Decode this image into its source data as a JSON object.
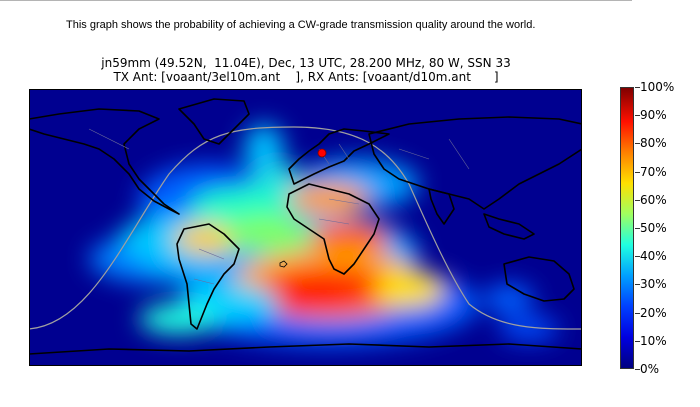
{
  "caption": "This graph shows the probability of achieving a CW-grade transmission quality around the world.",
  "title_line1": "jn59mm (49.52N,  11.04E), Dec, 13 UTC, 28.200 MHz, 80 W, SSN 33",
  "title_line2": "TX Ant: [voaant/3el10m.ant    ], RX Ants: [voaant/d10m.ant      ]",
  "colorbar": {
    "labels": [
      "0%",
      "10%",
      "20%",
      "30%",
      "40%",
      "50%",
      "60%",
      "70%",
      "80%",
      "90%",
      "100%"
    ],
    "colors": [
      "#000080",
      "#0000e0",
      "#0040ff",
      "#00a0ff",
      "#20ffe0",
      "#a0ff60",
      "#ffe000",
      "#ff8000",
      "#ff1000",
      "#800000"
    ]
  },
  "map": {
    "background_color": "#000090",
    "transmitter_marker_color": "#ff0000",
    "terminator_color": "#a0a0a0"
  }
}
